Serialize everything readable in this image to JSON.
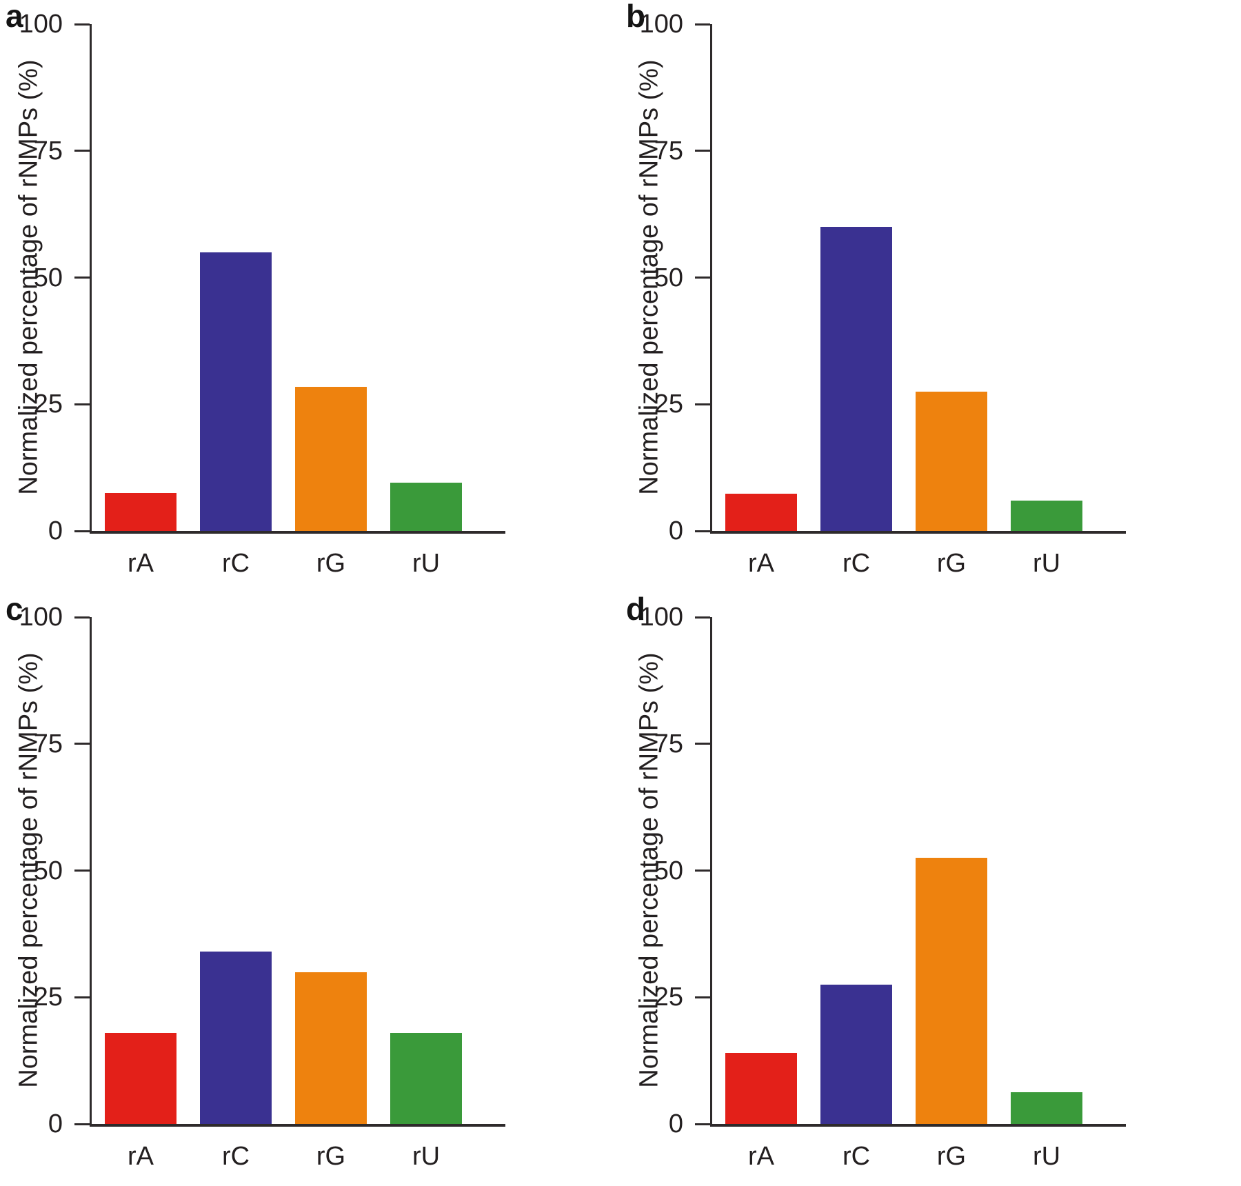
{
  "figure": {
    "ylabel": "Normalized percentage of rNMPs (%)",
    "categories": [
      "rA",
      "rC",
      "rG",
      "rU"
    ],
    "bar_colors": [
      "#e32019",
      "#3a3191",
      "#ee820e",
      "#3a9a3a"
    ],
    "axis_color": "#2e2a2b"
  },
  "chart_data": [
    {
      "type": "bar",
      "panel_label": "a",
      "title": "",
      "ylabel": "Normalized percentage of rNMPs (%)",
      "xlabel": "",
      "categories": [
        "rA",
        "rC",
        "rG",
        "rU"
      ],
      "values": [
        7.5,
        55,
        28.5,
        9.5
      ],
      "bar_colors": [
        "#e32019",
        "#3a3191",
        "#ee820e",
        "#3a9a3a"
      ],
      "yticks": [
        0,
        25,
        50,
        75,
        100
      ],
      "ylim": [
        0,
        100
      ],
      "grid": false,
      "legend_position": "none"
    },
    {
      "type": "bar",
      "panel_label": "b",
      "title": "",
      "ylabel": "Normalized percentage of rNMPs (%)",
      "xlabel": "",
      "categories": [
        "rA",
        "rC",
        "rG",
        "rU"
      ],
      "values": [
        7.3,
        60,
        27.5,
        6
      ],
      "bar_colors": [
        "#e32019",
        "#3a3191",
        "#ee820e",
        "#3a9a3a"
      ],
      "yticks": [
        0,
        25,
        50,
        75,
        100
      ],
      "ylim": [
        0,
        100
      ],
      "grid": false,
      "legend_position": "none"
    },
    {
      "type": "bar",
      "panel_label": "c",
      "title": "",
      "ylabel": "Normalized percentage of rNMPs (%)",
      "xlabel": "",
      "categories": [
        "rA",
        "rC",
        "rG",
        "rU"
      ],
      "values": [
        18,
        34,
        30,
        18
      ],
      "bar_colors": [
        "#e32019",
        "#3a3191",
        "#ee820e",
        "#3a9a3a"
      ],
      "yticks": [
        0,
        25,
        50,
        75,
        100
      ],
      "ylim": [
        0,
        100
      ],
      "grid": false,
      "legend_position": "none"
    },
    {
      "type": "bar",
      "panel_label": "d",
      "title": "",
      "ylabel": "Normalized percentage of rNMPs (%)",
      "xlabel": "",
      "categories": [
        "rA",
        "rC",
        "rG",
        "rU"
      ],
      "values": [
        14,
        27.5,
        52.5,
        6.3
      ],
      "bar_colors": [
        "#e32019",
        "#3a3191",
        "#ee820e",
        "#3a9a3a"
      ],
      "yticks": [
        0,
        25,
        50,
        75,
        100
      ],
      "ylim": [
        0,
        100
      ],
      "grid": false,
      "legend_position": "none"
    }
  ]
}
